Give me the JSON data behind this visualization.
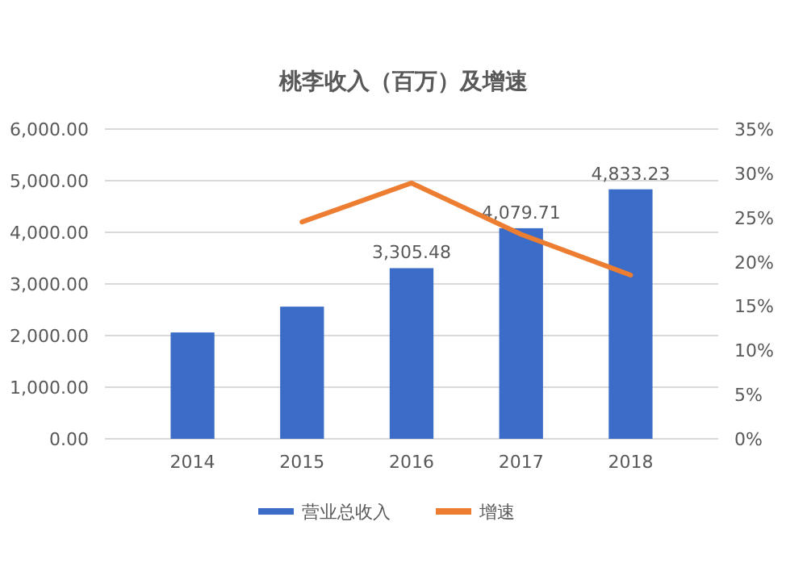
{
  "chart_data": {
    "type": "bar",
    "title": "桃李收入（百万）及增速",
    "categories": [
      "2014",
      "2015",
      "2016",
      "2017",
      "2018"
    ],
    "series": [
      {
        "name": "营业总收入",
        "color": "#3b6cc7",
        "values": [
          2060,
          2560,
          3305.48,
          4079.71,
          4833.23
        ],
        "value_labels": [
          null,
          null,
          "3,305.48",
          "4,079.71",
          "4,833.23"
        ]
      },
      {
        "name": "增速",
        "type": "line",
        "axis": "y2",
        "color": "#ed7d31",
        "values": [
          null,
          24.5,
          28.9,
          23.1,
          18.5
        ]
      }
    ],
    "ylim": [
      0,
      6000
    ],
    "yticks": [
      {
        "value": 0,
        "label": "0.00"
      },
      {
        "value": 1000,
        "label": "1,000.00"
      },
      {
        "value": 2000,
        "label": "2,000.00"
      },
      {
        "value": 3000,
        "label": "3,000.00"
      },
      {
        "value": 4000,
        "label": "4,000.00"
      },
      {
        "value": 5000,
        "label": "5,000.00"
      },
      {
        "value": 6000,
        "label": "6,000.00"
      }
    ],
    "y2lim": [
      0,
      35
    ],
    "y2ticks": [
      {
        "value": 0,
        "label": "0%"
      },
      {
        "value": 5,
        "label": "5%"
      },
      {
        "value": 10,
        "label": "10%"
      },
      {
        "value": 15,
        "label": "15%"
      },
      {
        "value": 20,
        "label": "20%"
      },
      {
        "value": 25,
        "label": "25%"
      },
      {
        "value": 30,
        "label": "30%"
      },
      {
        "value": 35,
        "label": "35%"
      }
    ],
    "grid": "y",
    "legend": "bottom"
  }
}
